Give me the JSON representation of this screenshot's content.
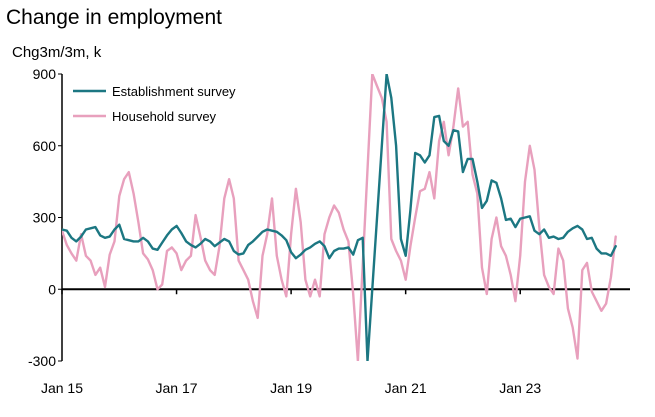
{
  "chart_data": {
    "type": "line",
    "title": "Change in employment",
    "ylabel": "Chg3m/3m, k",
    "ylim": [
      -300,
      900
    ],
    "yticks": [
      -300,
      0,
      300,
      600,
      900
    ],
    "xlim": [
      "2015-01",
      "2024-12"
    ],
    "xticks": [
      {
        "date": "2015-01",
        "label": "Jan 15"
      },
      {
        "date": "2017-01",
        "label": "Jan 17"
      },
      {
        "date": "2019-01",
        "label": "Jan 19"
      },
      {
        "date": "2021-01",
        "label": "Jan 21"
      },
      {
        "date": "2023-01",
        "label": "Jan 23"
      }
    ],
    "grid": false,
    "legend_position": "top-left",
    "series": [
      {
        "name": "Establishment survey",
        "color": "#1c7782",
        "points": [
          [
            "2015-01",
            250
          ],
          [
            "2015-02",
            245
          ],
          [
            "2015-03",
            215
          ],
          [
            "2015-04",
            200
          ],
          [
            "2015-05",
            220
          ],
          [
            "2015-06",
            250
          ],
          [
            "2015-07",
            255
          ],
          [
            "2015-08",
            260
          ],
          [
            "2015-09",
            225
          ],
          [
            "2015-10",
            215
          ],
          [
            "2015-11",
            220
          ],
          [
            "2015-12",
            250
          ],
          [
            "2016-01",
            270
          ],
          [
            "2016-02",
            210
          ],
          [
            "2016-03",
            205
          ],
          [
            "2016-04",
            200
          ],
          [
            "2016-05",
            200
          ],
          [
            "2016-06",
            215
          ],
          [
            "2016-07",
            200
          ],
          [
            "2016-08",
            170
          ],
          [
            "2016-09",
            165
          ],
          [
            "2016-10",
            195
          ],
          [
            "2016-11",
            225
          ],
          [
            "2016-12",
            250
          ],
          [
            "2017-01",
            265
          ],
          [
            "2017-02",
            235
          ],
          [
            "2017-03",
            200
          ],
          [
            "2017-04",
            185
          ],
          [
            "2017-05",
            175
          ],
          [
            "2017-06",
            190
          ],
          [
            "2017-07",
            210
          ],
          [
            "2017-08",
            200
          ],
          [
            "2017-09",
            180
          ],
          [
            "2017-10",
            195
          ],
          [
            "2017-11",
            210
          ],
          [
            "2017-12",
            200
          ],
          [
            "2018-01",
            160
          ],
          [
            "2018-02",
            145
          ],
          [
            "2018-03",
            150
          ],
          [
            "2018-04",
            185
          ],
          [
            "2018-05",
            200
          ],
          [
            "2018-06",
            220
          ],
          [
            "2018-07",
            240
          ],
          [
            "2018-08",
            250
          ],
          [
            "2018-09",
            245
          ],
          [
            "2018-10",
            240
          ],
          [
            "2018-11",
            225
          ],
          [
            "2018-12",
            205
          ],
          [
            "2019-01",
            155
          ],
          [
            "2019-02",
            130
          ],
          [
            "2019-03",
            145
          ],
          [
            "2019-04",
            165
          ],
          [
            "2019-05",
            175
          ],
          [
            "2019-06",
            190
          ],
          [
            "2019-07",
            200
          ],
          [
            "2019-08",
            180
          ],
          [
            "2019-09",
            130
          ],
          [
            "2019-10",
            160
          ],
          [
            "2019-11",
            170
          ],
          [
            "2019-12",
            170
          ],
          [
            "2020-01",
            175
          ],
          [
            "2020-02",
            145
          ],
          [
            "2020-03",
            205
          ],
          [
            "2020-04",
            215
          ],
          [
            "2020-05",
            -300
          ],
          [
            "2020-09",
            900
          ],
          [
            "2020-10",
            800
          ],
          [
            "2020-11",
            600
          ],
          [
            "2020-12",
            210
          ],
          [
            "2021-01",
            140
          ],
          [
            "2021-02",
            330
          ],
          [
            "2021-03",
            570
          ],
          [
            "2021-04",
            560
          ],
          [
            "2021-05",
            530
          ],
          [
            "2021-06",
            560
          ],
          [
            "2021-07",
            720
          ],
          [
            "2021-08",
            725
          ],
          [
            "2021-09",
            620
          ],
          [
            "2021-10",
            600
          ],
          [
            "2021-11",
            665
          ],
          [
            "2021-12",
            660
          ],
          [
            "2022-01",
            490
          ],
          [
            "2022-02",
            545
          ],
          [
            "2022-03",
            545
          ],
          [
            "2022-04",
            450
          ],
          [
            "2022-05",
            340
          ],
          [
            "2022-06",
            370
          ],
          [
            "2022-07",
            455
          ],
          [
            "2022-08",
            445
          ],
          [
            "2022-09",
            380
          ],
          [
            "2022-10",
            290
          ],
          [
            "2022-11",
            295
          ],
          [
            "2022-12",
            260
          ],
          [
            "2023-01",
            295
          ],
          [
            "2023-02",
            300
          ],
          [
            "2023-03",
            305
          ],
          [
            "2023-04",
            245
          ],
          [
            "2023-05",
            230
          ],
          [
            "2023-06",
            250
          ],
          [
            "2023-07",
            215
          ],
          [
            "2023-08",
            220
          ],
          [
            "2023-09",
            210
          ],
          [
            "2023-10",
            215
          ],
          [
            "2023-11",
            240
          ],
          [
            "2023-12",
            255
          ],
          [
            "2024-01",
            265
          ],
          [
            "2024-02",
            250
          ],
          [
            "2024-03",
            210
          ],
          [
            "2024-04",
            215
          ],
          [
            "2024-05",
            170
          ],
          [
            "2024-06",
            150
          ],
          [
            "2024-07",
            150
          ],
          [
            "2024-08",
            140
          ],
          [
            "2024-09",
            180
          ]
        ]
      },
      {
        "name": "Household survey",
        "color": "#e8a0bd",
        "points": [
          [
            "2015-01",
            245
          ],
          [
            "2015-02",
            185
          ],
          [
            "2015-03",
            150
          ],
          [
            "2015-04",
            120
          ],
          [
            "2015-05",
            230
          ],
          [
            "2015-06",
            140
          ],
          [
            "2015-07",
            120
          ],
          [
            "2015-08",
            60
          ],
          [
            "2015-09",
            90
          ],
          [
            "2015-10",
            10
          ],
          [
            "2015-11",
            145
          ],
          [
            "2015-12",
            200
          ],
          [
            "2016-01",
            390
          ],
          [
            "2016-02",
            460
          ],
          [
            "2016-03",
            490
          ],
          [
            "2016-04",
            400
          ],
          [
            "2016-05",
            280
          ],
          [
            "2016-06",
            150
          ],
          [
            "2016-07",
            125
          ],
          [
            "2016-08",
            80
          ],
          [
            "2016-09",
            0
          ],
          [
            "2016-10",
            20
          ],
          [
            "2016-11",
            160
          ],
          [
            "2016-12",
            175
          ],
          [
            "2017-01",
            150
          ],
          [
            "2017-02",
            80
          ],
          [
            "2017-03",
            120
          ],
          [
            "2017-04",
            140
          ],
          [
            "2017-05",
            310
          ],
          [
            "2017-06",
            220
          ],
          [
            "2017-07",
            120
          ],
          [
            "2017-08",
            80
          ],
          [
            "2017-09",
            60
          ],
          [
            "2017-10",
            180
          ],
          [
            "2017-11",
            380
          ],
          [
            "2017-12",
            460
          ],
          [
            "2018-01",
            380
          ],
          [
            "2018-02",
            120
          ],
          [
            "2018-03",
            80
          ],
          [
            "2018-04",
            40
          ],
          [
            "2018-05",
            -50
          ],
          [
            "2018-06",
            -120
          ],
          [
            "2018-07",
            140
          ],
          [
            "2018-08",
            230
          ],
          [
            "2018-09",
            380
          ],
          [
            "2018-10",
            140
          ],
          [
            "2018-11",
            40
          ],
          [
            "2018-12",
            -30
          ],
          [
            "2019-01",
            230
          ],
          [
            "2019-02",
            420
          ],
          [
            "2019-03",
            280
          ],
          [
            "2019-04",
            40
          ],
          [
            "2019-05",
            -30
          ],
          [
            "2019-06",
            40
          ],
          [
            "2019-07",
            -30
          ],
          [
            "2019-08",
            230
          ],
          [
            "2019-09",
            300
          ],
          [
            "2019-10",
            350
          ],
          [
            "2019-11",
            320
          ],
          [
            "2019-12",
            250
          ],
          [
            "2020-01",
            200
          ],
          [
            "2020-02",
            -20
          ],
          [
            "2020-03",
            -300
          ],
          [
            "2020-06",
            900
          ],
          [
            "2020-07",
            850
          ],
          [
            "2020-08",
            800
          ],
          [
            "2020-09",
            700
          ],
          [
            "2020-10",
            210
          ],
          [
            "2020-11",
            160
          ],
          [
            "2020-12",
            120
          ],
          [
            "2021-01",
            40
          ],
          [
            "2021-02",
            180
          ],
          [
            "2021-03",
            300
          ],
          [
            "2021-04",
            410
          ],
          [
            "2021-05",
            420
          ],
          [
            "2021-06",
            490
          ],
          [
            "2021-07",
            380
          ],
          [
            "2021-08",
            620
          ],
          [
            "2021-09",
            700
          ],
          [
            "2021-10",
            560
          ],
          [
            "2021-11",
            680
          ],
          [
            "2021-12",
            840
          ],
          [
            "2022-01",
            680
          ],
          [
            "2022-02",
            700
          ],
          [
            "2022-03",
            480
          ],
          [
            "2022-04",
            400
          ],
          [
            "2022-05",
            90
          ],
          [
            "2022-06",
            -20
          ],
          [
            "2022-07",
            210
          ],
          [
            "2022-08",
            300
          ],
          [
            "2022-09",
            180
          ],
          [
            "2022-10",
            140
          ],
          [
            "2022-11",
            60
          ],
          [
            "2022-12",
            -50
          ],
          [
            "2023-01",
            140
          ],
          [
            "2023-02",
            450
          ],
          [
            "2023-03",
            600
          ],
          [
            "2023-04",
            500
          ],
          [
            "2023-05",
            260
          ],
          [
            "2023-06",
            60
          ],
          [
            "2023-07",
            10
          ],
          [
            "2023-08",
            -20
          ],
          [
            "2023-09",
            170
          ],
          [
            "2023-10",
            120
          ],
          [
            "2023-11",
            -80
          ],
          [
            "2023-12",
            -160
          ],
          [
            "2024-01",
            -290
          ],
          [
            "2024-02",
            80
          ],
          [
            "2024-03",
            110
          ],
          [
            "2024-04",
            -10
          ],
          [
            "2024-05",
            -50
          ],
          [
            "2024-06",
            -90
          ],
          [
            "2024-07",
            -60
          ],
          [
            "2024-08",
            50
          ],
          [
            "2024-09",
            220
          ]
        ]
      }
    ]
  }
}
